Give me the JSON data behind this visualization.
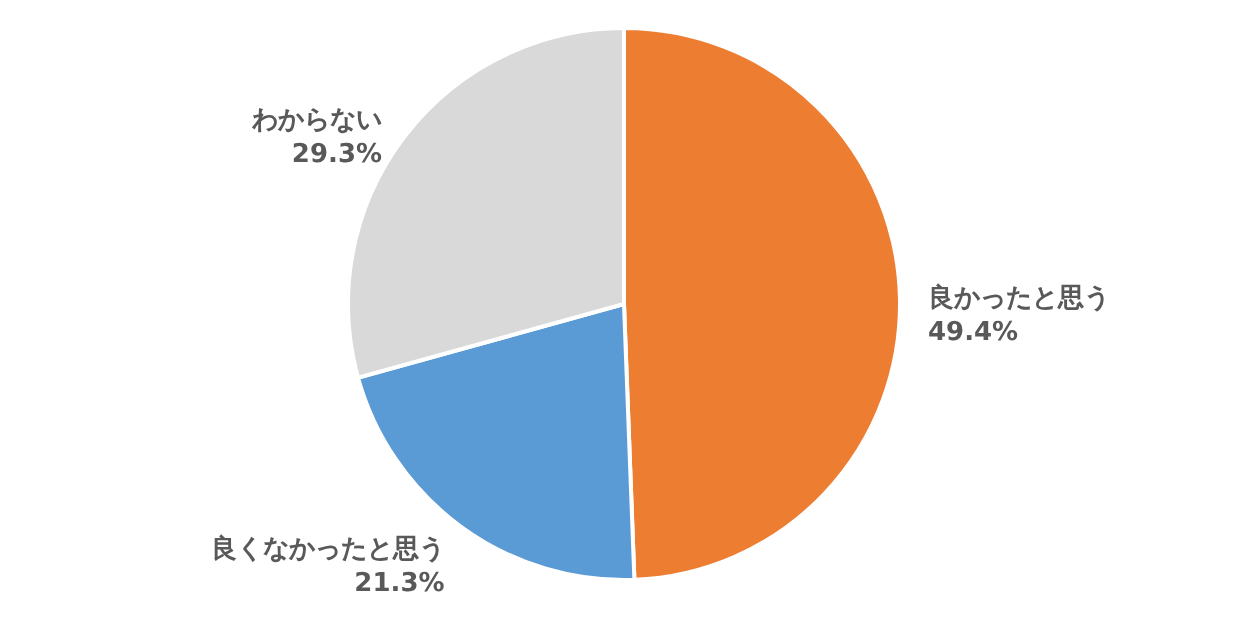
{
  "chart_data": {
    "type": "pie",
    "categories": [
      "良かったと思う",
      "良くなかったと思う",
      "わからない"
    ],
    "values": [
      49.4,
      21.3,
      29.3
    ],
    "value_labels": [
      "49.4%",
      "21.3%",
      "29.3%"
    ],
    "colors": [
      "#ed7d31",
      "#5b9bd5",
      "#d9d9d9"
    ]
  }
}
